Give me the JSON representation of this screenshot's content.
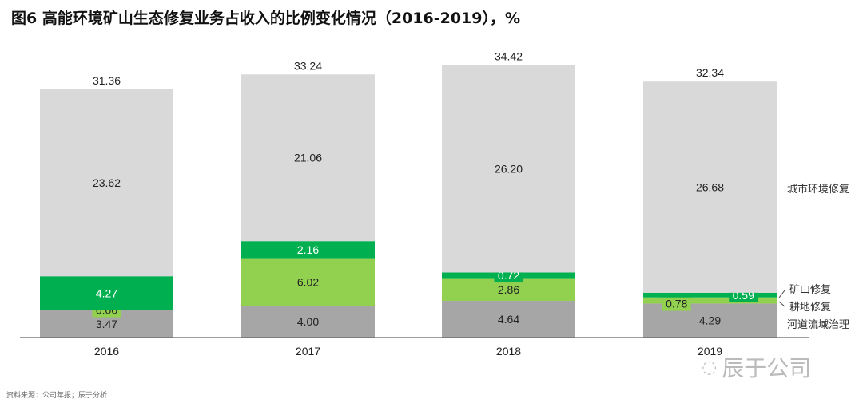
{
  "chart_data": {
    "type": "stacked-bar",
    "title": "图6 高能环境矿山生态修复业务占收入的比例变化情况（2016-2019），%",
    "categories": [
      "2016",
      "2017",
      "2018",
      "2019"
    ],
    "series": [
      {
        "name": "河道流域治理",
        "color": "#a6a6a6",
        "values": [
          3.47,
          4.0,
          4.64,
          4.29
        ]
      },
      {
        "name": "耕地修复",
        "color": "#92d050",
        "values": [
          0.0,
          6.02,
          2.86,
          0.78
        ]
      },
      {
        "name": "矿山修复",
        "color": "#00b050",
        "values": [
          4.27,
          2.16,
          0.72,
          0.59
        ]
      },
      {
        "name": "城市环境修复",
        "color": "#d9d9d9",
        "values": [
          23.62,
          21.06,
          26.2,
          26.68
        ]
      }
    ],
    "totals": [
      31.36,
      33.24,
      34.42,
      32.34
    ],
    "legend_placement": "right",
    "ylim": [
      0,
      38
    ],
    "grid": false
  },
  "source": "资料来源：公司年报；辰于分析",
  "watermark": "辰于公司"
}
